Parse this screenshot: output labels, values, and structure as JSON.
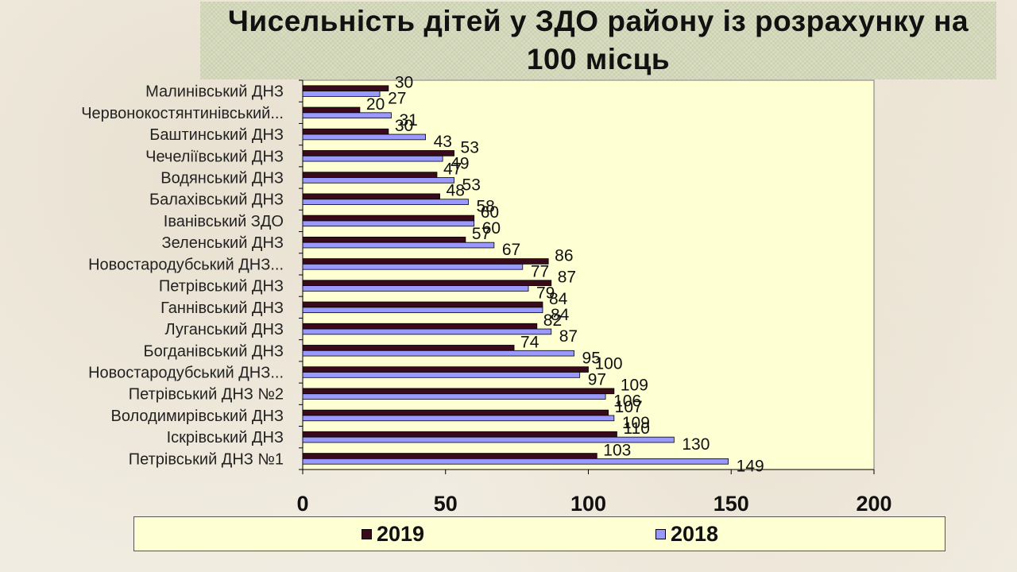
{
  "chart_data": {
    "type": "bar",
    "orientation": "horizontal",
    "title": "Чисельність дітей у ЗДО району із розрахунку на 100 місць",
    "categories": [
      "Малинівський ДНЗ",
      "Червонокостянтинівський...",
      "Баштинський ДНЗ",
      "Чечеліївський ДНЗ",
      "Водянський ДНЗ",
      "Балахівський ДНЗ",
      "Іванівський ЗДО",
      "Зеленський  ДНЗ",
      "Новостародубський ДНЗ...",
      "Петрівський ДНЗ",
      "Ганнівський ДНЗ",
      "Луганський ДНЗ",
      "Богданівський ДНЗ",
      "Новостародубський ДНЗ...",
      "Петрівський ДНЗ №2",
      "Володимирівський ДНЗ",
      "Іскрівський ДНЗ",
      "Петрівський ДНЗ №1"
    ],
    "series": [
      {
        "name": "2019",
        "color": "#3a0a1a",
        "values": [
          30,
          20,
          30,
          53,
          47,
          48,
          60,
          57,
          86,
          87,
          84,
          82,
          74,
          100,
          109,
          107,
          110,
          103
        ]
      },
      {
        "name": "2018",
        "color": "#9999ff",
        "values": [
          27,
          31,
          43,
          49,
          53,
          58,
          60,
          67,
          77,
          79,
          84,
          87,
          95,
          97,
          106,
          109,
          130,
          149
        ]
      }
    ],
    "xlim": [
      0,
      200
    ],
    "xticks": [
      0,
      50,
      100,
      150,
      200
    ],
    "legend_position": "bottom",
    "plot_background": "#ffffd4",
    "grid": false
  }
}
